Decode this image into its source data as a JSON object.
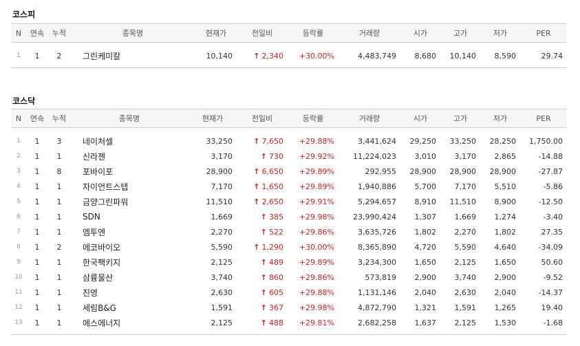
{
  "kospi": {
    "title": "코스피",
    "headers": [
      "N",
      "연속",
      "누적",
      "종목명",
      "현재가",
      "전일비",
      "등락률",
      "거래량",
      "시가",
      "고가",
      "저가",
      "PER"
    ],
    "rows": [
      {
        "n": "1",
        "streak": "1",
        "total": "2",
        "name": "그린케미칼",
        "price": "10,140",
        "change": "2,340",
        "rate": "+30.00%",
        "volume": "4,483,749",
        "open": "8,680",
        "high": "10,140",
        "low": "8,590",
        "per": "29.74"
      }
    ]
  },
  "kosdaq": {
    "title": "코스닥",
    "headers": [
      "N",
      "연속",
      "누적",
      "종목명",
      "현재가",
      "전일비",
      "등락률",
      "거래량",
      "시가",
      "고가",
      "저가",
      "PER"
    ],
    "rows": [
      {
        "n": "1",
        "streak": "1",
        "total": "3",
        "name": "네이처셀",
        "price": "33,250",
        "change": "7,650",
        "rate": "+29.88%",
        "volume": "3,441,624",
        "open": "29,250",
        "high": "33,250",
        "low": "28,250",
        "per": "1,750.00"
      },
      {
        "n": "2",
        "streak": "1",
        "total": "1",
        "name": "신라젠",
        "price": "3,170",
        "change": "730",
        "rate": "+29.92%",
        "volume": "11,224,023",
        "open": "3,010",
        "high": "3,170",
        "low": "2,865",
        "per": "-14.88"
      },
      {
        "n": "3",
        "streak": "1",
        "total": "8",
        "name": "포바이포",
        "price": "28,900",
        "change": "6,650",
        "rate": "+29.89%",
        "volume": "292,955",
        "open": "28,900",
        "high": "28,900",
        "low": "28,900",
        "per": "-27.87"
      },
      {
        "n": "4",
        "streak": "1",
        "total": "1",
        "name": "자이언트스텝",
        "price": "7,170",
        "change": "1,650",
        "rate": "+29.89%",
        "volume": "1,940,886",
        "open": "5,700",
        "high": "7,170",
        "low": "5,510",
        "per": "-5.86"
      },
      {
        "n": "5",
        "streak": "1",
        "total": "1",
        "name": "금양그린파워",
        "price": "11,510",
        "change": "2,650",
        "rate": "+29.91%",
        "volume": "5,294,657",
        "open": "8,910",
        "high": "11,510",
        "low": "8,900",
        "per": "-12.50"
      },
      {
        "n": "6",
        "streak": "1",
        "total": "1",
        "name": "SDN",
        "price": "1,669",
        "change": "385",
        "rate": "+29.98%",
        "volume": "23,990,424",
        "open": "1,307",
        "high": "1,669",
        "low": "1,274",
        "per": "-3.40"
      },
      {
        "n": "7",
        "streak": "1",
        "total": "1",
        "name": "엠투엔",
        "price": "2,270",
        "change": "522",
        "rate": "+29.86%",
        "volume": "3,635,726",
        "open": "1,802",
        "high": "2,270",
        "low": "1,802",
        "per": "27.35"
      },
      {
        "n": "8",
        "streak": "1",
        "total": "2",
        "name": "에코바이오",
        "price": "5,590",
        "change": "1,290",
        "rate": "+30.00%",
        "volume": "8,365,890",
        "open": "4,720",
        "high": "5,590",
        "low": "4,640",
        "per": "-34.09"
      },
      {
        "n": "9",
        "streak": "1",
        "total": "1",
        "name": "한국팩키지",
        "price": "2,125",
        "change": "489",
        "rate": "+29.89%",
        "volume": "3,234,300",
        "open": "1,650",
        "high": "2,125",
        "low": "1,650",
        "per": "50.60"
      },
      {
        "n": "10",
        "streak": "1",
        "total": "1",
        "name": "삼륭물산",
        "price": "3,740",
        "change": "860",
        "rate": "+29.86%",
        "volume": "573,819",
        "open": "2,900",
        "high": "3,740",
        "low": "2,900",
        "per": "-9.52"
      },
      {
        "n": "11",
        "streak": "1",
        "total": "1",
        "name": "진영",
        "price": "2,630",
        "change": "605",
        "rate": "+29.88%",
        "volume": "1,131,146",
        "open": "2,040",
        "high": "2,630",
        "low": "2,040",
        "per": "-14.37"
      },
      {
        "n": "12",
        "streak": "1",
        "total": "1",
        "name": "세림B&G",
        "price": "1,591",
        "change": "367",
        "rate": "+29.98%",
        "volume": "4,872,790",
        "open": "1,321",
        "high": "1,591",
        "low": "1,265",
        "per": "19.40"
      },
      {
        "n": "13",
        "streak": "1",
        "total": "1",
        "name": "에스에너지",
        "price": "2,125",
        "change": "488",
        "rate": "+29.81%",
        "volume": "2,682,258",
        "open": "1,637",
        "high": "2,125",
        "low": "1,530",
        "per": "-1.68"
      }
    ]
  },
  "up_arrow": "arrow-up-icon",
  "colors": {
    "up": "#d21f1f",
    "header_bg": "#f6f6f6",
    "border": "#cfcfcf"
  }
}
